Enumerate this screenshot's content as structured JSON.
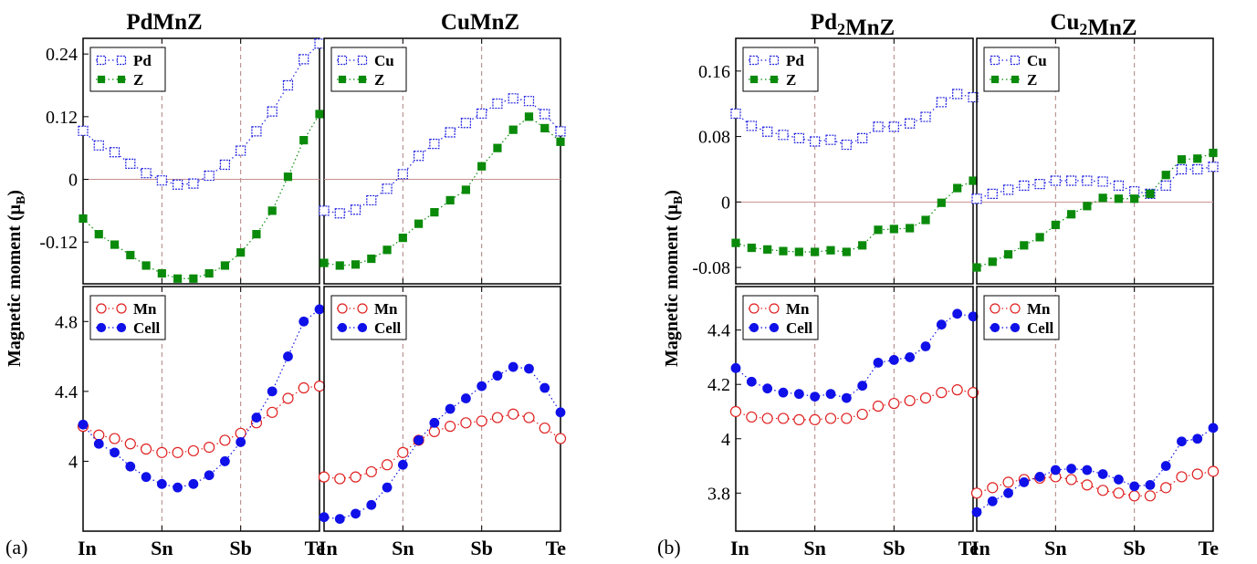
{
  "panels": [
    {
      "tag": "(a)",
      "ylabel": "Magnetic moment (μB)",
      "columns": [
        {
          "title": "PdMnZ"
        },
        {
          "title": "CuMnZ"
        }
      ]
    },
    {
      "tag": "(b)",
      "ylabel": "Magnetic moment (μB)",
      "columns": [
        {
          "title": "Pd2MnZ"
        },
        {
          "title": "Cu2MnZ"
        }
      ]
    }
  ],
  "colors": {
    "element_series": "#2020e0",
    "z_series": "#0a8a0a",
    "mn_series": "#e02020",
    "cell_series": "#1010e8",
    "zero_line": "#c89090",
    "ref_line": "#b08080"
  },
  "chart_data": [
    {
      "type": "scatter",
      "title": "PdMnZ",
      "part": "top",
      "x_tick_labels": [
        "In",
        "Sn",
        "Sb",
        "Te"
      ],
      "x_tick_positions": [
        0,
        1,
        2,
        3
      ],
      "x": [
        0,
        0.2,
        0.4,
        0.6,
        0.8,
        1.0,
        1.2,
        1.4,
        1.6,
        1.8,
        2.0,
        2.2,
        2.4,
        2.6,
        2.8,
        3.0
      ],
      "ylim": [
        -0.2,
        0.27
      ],
      "yticks": [
        -0.12,
        0,
        0.12,
        0.24
      ],
      "ytick_labels": [
        "-0.12",
        "0",
        "0.12",
        "0.24"
      ],
      "series": [
        {
          "name": "Pd",
          "marker": "open-square",
          "values": [
            0.093,
            0.065,
            0.052,
            0.03,
            0.012,
            -0.002,
            -0.01,
            -0.008,
            0.007,
            0.028,
            0.055,
            0.092,
            0.13,
            0.18,
            0.23,
            0.26
          ]
        },
        {
          "name": "Z",
          "marker": "filled-square",
          "values": [
            -0.075,
            -0.105,
            -0.125,
            -0.145,
            -0.165,
            -0.18,
            -0.19,
            -0.19,
            -0.18,
            -0.165,
            -0.14,
            -0.105,
            -0.06,
            0.005,
            0.075,
            0.125
          ]
        }
      ]
    },
    {
      "type": "scatter",
      "title": "CuMnZ",
      "part": "top",
      "x_tick_labels": [
        "In",
        "Sn",
        "Sb",
        "Te"
      ],
      "x_tick_positions": [
        0,
        1,
        2,
        3
      ],
      "x": [
        0,
        0.2,
        0.4,
        0.6,
        0.8,
        1.0,
        1.2,
        1.4,
        1.6,
        1.8,
        2.0,
        2.2,
        2.4,
        2.6,
        2.8,
        3.0
      ],
      "ylim": [
        -0.2,
        0.27
      ],
      "series": [
        {
          "name": "Cu",
          "marker": "open-square",
          "values": [
            -0.06,
            -0.065,
            -0.058,
            -0.04,
            -0.018,
            0.01,
            0.045,
            0.068,
            0.09,
            0.108,
            0.126,
            0.145,
            0.155,
            0.15,
            0.125,
            0.092
          ]
        },
        {
          "name": "Z",
          "marker": "filled-square",
          "values": [
            -0.16,
            -0.165,
            -0.163,
            -0.152,
            -0.135,
            -0.112,
            -0.085,
            -0.063,
            -0.04,
            -0.02,
            0.025,
            0.06,
            0.095,
            0.12,
            0.098,
            0.072
          ]
        }
      ]
    },
    {
      "type": "scatter",
      "title": "PdMnZ",
      "part": "bottom",
      "x_tick_labels": [
        "In",
        "Sn",
        "Sb",
        "Te"
      ],
      "x_tick_positions": [
        0,
        1,
        2,
        3
      ],
      "x": [
        0,
        0.2,
        0.4,
        0.6,
        0.8,
        1.0,
        1.2,
        1.4,
        1.6,
        1.8,
        2.0,
        2.2,
        2.4,
        2.6,
        2.8,
        3.0
      ],
      "ylim": [
        3.6,
        5.0
      ],
      "yticks": [
        4.0,
        4.4,
        4.8
      ],
      "ytick_labels": [
        "4",
        "4.4",
        "4.8"
      ],
      "series": [
        {
          "name": "Mn",
          "marker": "open-circle",
          "values": [
            4.2,
            4.15,
            4.13,
            4.1,
            4.07,
            4.05,
            4.05,
            4.06,
            4.08,
            4.12,
            4.16,
            4.22,
            4.28,
            4.36,
            4.42,
            4.43
          ]
        },
        {
          "name": "Cell",
          "marker": "filled-circle",
          "values": [
            4.21,
            4.1,
            4.05,
            3.97,
            3.91,
            3.87,
            3.85,
            3.87,
            3.92,
            4.0,
            4.11,
            4.25,
            4.4,
            4.6,
            4.8,
            4.87
          ]
        }
      ]
    },
    {
      "type": "scatter",
      "title": "CuMnZ",
      "part": "bottom",
      "x_tick_labels": [
        "In",
        "Sn",
        "Sb",
        "Te"
      ],
      "x_tick_positions": [
        0,
        1,
        2,
        3
      ],
      "x": [
        0,
        0.2,
        0.4,
        0.6,
        0.8,
        1.0,
        1.2,
        1.4,
        1.6,
        1.8,
        2.0,
        2.2,
        2.4,
        2.6,
        2.8,
        3.0
      ],
      "ylim": [
        3.6,
        5.0
      ],
      "series": [
        {
          "name": "Mn",
          "marker": "open-circle",
          "values": [
            3.91,
            3.9,
            3.91,
            3.94,
            3.98,
            4.05,
            4.12,
            4.17,
            4.2,
            4.22,
            4.23,
            4.25,
            4.27,
            4.25,
            4.19,
            4.13
          ]
        },
        {
          "name": "Cell",
          "marker": "filled-circle",
          "values": [
            3.68,
            3.67,
            3.7,
            3.75,
            3.85,
            3.98,
            4.12,
            4.22,
            4.3,
            4.36,
            4.43,
            4.49,
            4.54,
            4.53,
            4.42,
            4.28
          ]
        }
      ]
    },
    {
      "type": "scatter",
      "title": "Pd2MnZ",
      "part": "top",
      "x_tick_labels": [
        "In",
        "Sn",
        "Sb",
        "Te"
      ],
      "x_tick_positions": [
        0,
        1,
        2,
        3
      ],
      "x": [
        0,
        0.2,
        0.4,
        0.6,
        0.8,
        1.0,
        1.2,
        1.4,
        1.6,
        1.8,
        2.0,
        2.2,
        2.4,
        2.6,
        2.8,
        3.0
      ],
      "ylim": [
        -0.1,
        0.2
      ],
      "yticks": [
        -0.08,
        0,
        0.08,
        0.16
      ],
      "ytick_labels": [
        "-0.08",
        "0",
        "0.08",
        "0.16"
      ],
      "series": [
        {
          "name": "Pd",
          "marker": "open-square",
          "values": [
            0.108,
            0.093,
            0.086,
            0.082,
            0.078,
            0.074,
            0.076,
            0.07,
            0.078,
            0.092,
            0.092,
            0.096,
            0.104,
            0.122,
            0.132,
            0.128
          ]
        },
        {
          "name": "Z",
          "marker": "filled-square",
          "values": [
            -0.05,
            -0.056,
            -0.058,
            -0.06,
            -0.061,
            -0.061,
            -0.059,
            -0.061,
            -0.053,
            -0.034,
            -0.033,
            -0.032,
            -0.022,
            -0.001,
            0.017,
            0.026
          ]
        }
      ]
    },
    {
      "type": "scatter",
      "title": "Cu2MnZ",
      "part": "top",
      "x_tick_labels": [
        "In",
        "Sn",
        "Sb",
        "Te"
      ],
      "x_tick_positions": [
        0,
        1,
        2,
        3
      ],
      "x": [
        0,
        0.2,
        0.4,
        0.6,
        0.8,
        1.0,
        1.2,
        1.4,
        1.6,
        1.8,
        2.0,
        2.2,
        2.4,
        2.6,
        2.8,
        3.0
      ],
      "ylim": [
        -0.1,
        0.2
      ],
      "series": [
        {
          "name": "Cu",
          "marker": "open-square",
          "values": [
            0.004,
            0.01,
            0.015,
            0.02,
            0.022,
            0.026,
            0.026,
            0.026,
            0.025,
            0.02,
            0.013,
            0.01,
            0.02,
            0.04,
            0.04,
            0.043
          ]
        },
        {
          "name": "Z",
          "marker": "filled-square",
          "values": [
            -0.08,
            -0.073,
            -0.064,
            -0.053,
            -0.043,
            -0.028,
            -0.015,
            -0.005,
            0.005,
            0.004,
            0.004,
            0.01,
            0.033,
            0.052,
            0.053,
            0.06
          ]
        }
      ]
    },
    {
      "type": "scatter",
      "title": "Pd2MnZ",
      "part": "bottom",
      "x_tick_labels": [
        "In",
        "Sn",
        "Sb",
        "Te"
      ],
      "x_tick_positions": [
        0,
        1,
        2,
        3
      ],
      "x": [
        0,
        0.2,
        0.4,
        0.6,
        0.8,
        1.0,
        1.2,
        1.4,
        1.6,
        1.8,
        2.0,
        2.2,
        2.4,
        2.6,
        2.8,
        3.0
      ],
      "ylim": [
        3.66,
        4.56
      ],
      "yticks": [
        3.8,
        4.0,
        4.2,
        4.4
      ],
      "ytick_labels": [
        "3.8",
        "4",
        "4.2",
        "4.4"
      ],
      "series": [
        {
          "name": "Mn",
          "marker": "open-circle",
          "values": [
            4.1,
            4.08,
            4.075,
            4.075,
            4.07,
            4.07,
            4.075,
            4.075,
            4.09,
            4.12,
            4.13,
            4.14,
            4.15,
            4.17,
            4.18,
            4.17
          ]
        },
        {
          "name": "Cell",
          "marker": "filled-circle",
          "values": [
            4.26,
            4.21,
            4.185,
            4.17,
            4.165,
            4.155,
            4.165,
            4.15,
            4.195,
            4.28,
            4.29,
            4.3,
            4.34,
            4.42,
            4.46,
            4.45
          ]
        }
      ]
    },
    {
      "type": "scatter",
      "title": "Cu2MnZ",
      "part": "bottom",
      "x_tick_labels": [
        "In",
        "Sn",
        "Sb",
        "Te"
      ],
      "x_tick_positions": [
        0,
        1,
        2,
        3
      ],
      "x": [
        0,
        0.2,
        0.4,
        0.6,
        0.8,
        1.0,
        1.2,
        1.4,
        1.6,
        1.8,
        2.0,
        2.2,
        2.4,
        2.6,
        2.8,
        3.0
      ],
      "ylim": [
        3.66,
        4.56
      ],
      "series": [
        {
          "name": "Mn",
          "marker": "open-circle",
          "values": [
            3.8,
            3.82,
            3.84,
            3.85,
            3.855,
            3.86,
            3.85,
            3.83,
            3.81,
            3.8,
            3.79,
            3.79,
            3.82,
            3.86,
            3.87,
            3.88
          ]
        },
        {
          "name": "Cell",
          "marker": "filled-circle",
          "values": [
            3.73,
            3.77,
            3.8,
            3.84,
            3.86,
            3.885,
            3.89,
            3.885,
            3.87,
            3.85,
            3.825,
            3.83,
            3.9,
            3.99,
            4.0,
            4.04
          ]
        }
      ]
    }
  ]
}
